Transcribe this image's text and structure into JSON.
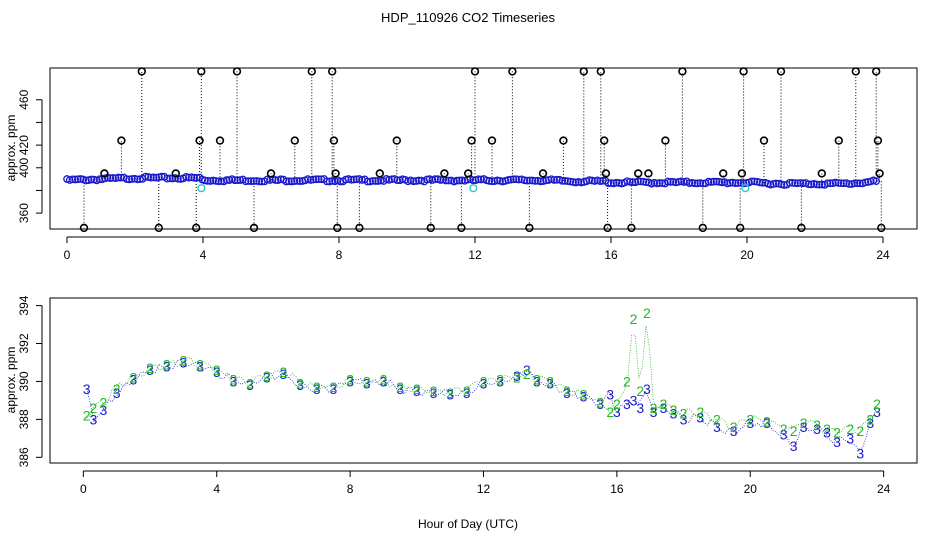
{
  "chart_data": [
    {
      "type": "scatter",
      "panel": "top",
      "title": "HDP_110926  CO2 Timeseries",
      "xlabel": "",
      "ylabel": "approx. ppm",
      "xlim": [
        -0.5,
        25
      ],
      "ylim": [
        346,
        488
      ],
      "xticks": [
        0,
        4,
        8,
        12,
        16,
        20,
        24
      ],
      "yticks": [
        360,
        380,
        400,
        420,
        440,
        460
      ],
      "ytick_labels": [
        "360",
        "",
        "400",
        "420",
        "",
        "460"
      ],
      "xtick_labels": [
        "0",
        "4",
        "8",
        "12",
        "16",
        "20",
        "24"
      ],
      "colors": {
        "main": "#1a1acc",
        "outlier": "#000000",
        "cyan": "#22cccc"
      },
      "series": [
        {
          "name": "main",
          "x": [
            0.0,
            1.0,
            2.0,
            3.0,
            3.9,
            4.0,
            5.0,
            6.0,
            7.0,
            8.0,
            9.0,
            10.0,
            11.0,
            12.0,
            13.0,
            14.0,
            15.0,
            15.8,
            16.0,
            17.0,
            18.0,
            19.0,
            20.0,
            21.0,
            22.0,
            23.0,
            23.8
          ],
          "y": [
            389,
            390,
            391,
            391,
            391,
            389,
            389,
            389,
            389,
            389,
            389,
            389,
            389,
            389,
            389,
            389,
            388,
            388,
            387,
            387,
            387,
            387,
            387,
            386,
            386,
            386,
            388
          ]
        },
        {
          "name": "outliers",
          "x": [
            0.5,
            1.1,
            1.6,
            2.2,
            2.7,
            3.2,
            3.8,
            3.9,
            3.95,
            4.5,
            5.0,
            5.5,
            6.0,
            6.7,
            7.2,
            7.8,
            7.85,
            7.9,
            7.95,
            8.6,
            9.2,
            9.7,
            10.7,
            11.1,
            11.6,
            11.8,
            11.9,
            12.0,
            12.5,
            13.1,
            13.6,
            14.0,
            14.6,
            15.2,
            15.7,
            15.8,
            15.85,
            15.9,
            16.6,
            16.8,
            17.1,
            17.6,
            18.1,
            18.7,
            19.3,
            19.8,
            19.85,
            19.9,
            20.5,
            21.0,
            21.6,
            22.2,
            22.7,
            23.2,
            23.8,
            23.85,
            23.9,
            23.95
          ],
          "y": [
            347,
            395,
            424,
            485,
            347,
            395,
            347,
            424,
            485,
            424,
            485,
            347,
            395,
            424,
            485,
            485,
            424,
            395,
            347,
            347,
            395,
            424,
            347,
            395,
            347,
            395,
            424,
            485,
            424,
            485,
            347,
            395,
            424,
            485,
            485,
            424,
            395,
            347,
            347,
            395,
            395,
            424,
            485,
            347,
            395,
            347,
            395,
            485,
            424,
            485,
            347,
            395,
            424,
            485,
            485,
            424,
            395,
            347
          ]
        },
        {
          "name": "cyan",
          "x": [
            3.95,
            11.95,
            19.95
          ],
          "y": [
            382,
            382,
            382
          ]
        }
      ]
    },
    {
      "type": "line",
      "panel": "bottom",
      "title": "",
      "xlabel": "Hour of Day (UTC)",
      "ylabel": "approx. ppm",
      "xlim": [
        -1,
        25
      ],
      "ylim": [
        385.7,
        394.4
      ],
      "xticks": [
        0,
        4,
        8,
        12,
        16,
        20,
        24
      ],
      "yticks": [
        386,
        388,
        390,
        392,
        394
      ],
      "xtick_labels": [
        "0",
        "4",
        "8",
        "12",
        "16",
        "20",
        "24"
      ],
      "ytick_labels": [
        "386",
        "388",
        "390",
        "392",
        "394"
      ],
      "colors": {
        "series3": "#1a1acc",
        "series2": "#22bb22"
      },
      "series": [
        {
          "name": "3",
          "x": [
            0.1,
            0.3,
            0.6,
            1.0,
            1.5,
            2.0,
            2.5,
            3.0,
            3.5,
            4.0,
            4.5,
            5.0,
            5.5,
            6.0,
            6.5,
            7.0,
            7.5,
            8.0,
            8.5,
            9.0,
            9.5,
            10.0,
            10.5,
            11.0,
            11.5,
            12.0,
            12.5,
            13.0,
            13.3,
            13.6,
            14.0,
            14.5,
            15.0,
            15.5,
            15.8,
            16.0,
            16.3,
            16.5,
            16.7,
            16.9,
            17.1,
            17.4,
            17.7,
            18.0,
            18.5,
            19.0,
            19.5,
            20.0,
            20.5,
            21.0,
            21.3,
            21.6,
            22.0,
            22.3,
            22.6,
            23.0,
            23.3,
            23.6,
            23.8
          ],
          "y": [
            389.6,
            388.0,
            388.5,
            389.4,
            390.1,
            390.6,
            390.8,
            391.0,
            390.8,
            390.5,
            390.0,
            389.8,
            390.2,
            390.4,
            389.8,
            389.6,
            389.6,
            390.0,
            389.9,
            390.0,
            389.6,
            389.5,
            389.4,
            389.3,
            389.4,
            389.9,
            390.0,
            390.3,
            390.6,
            390.0,
            389.9,
            389.4,
            389.2,
            388.8,
            389.3,
            388.4,
            388.8,
            389.0,
            388.6,
            389.6,
            388.4,
            388.6,
            388.3,
            388.0,
            388.1,
            387.6,
            387.4,
            387.8,
            387.8,
            387.2,
            386.6,
            387.6,
            387.5,
            387.3,
            386.8,
            387.0,
            386.2,
            387.8,
            388.4
          ]
        },
        {
          "name": "2",
          "x": [
            0.1,
            0.3,
            0.6,
            1.0,
            1.5,
            2.0,
            2.5,
            3.0,
            3.5,
            4.0,
            4.5,
            5.0,
            5.5,
            6.0,
            6.5,
            7.0,
            7.5,
            8.0,
            8.5,
            9.0,
            9.5,
            10.0,
            10.5,
            11.0,
            11.5,
            12.0,
            12.5,
            13.0,
            13.3,
            13.6,
            14.0,
            14.5,
            15.0,
            15.5,
            15.8,
            16.0,
            16.3,
            16.5,
            16.7,
            16.9,
            17.1,
            17.4,
            17.7,
            18.0,
            18.5,
            19.0,
            19.5,
            20.0,
            20.5,
            21.0,
            21.3,
            21.6,
            22.0,
            22.3,
            22.6,
            23.0,
            23.3,
            23.6,
            23.8
          ],
          "y": [
            388.2,
            388.6,
            388.9,
            389.6,
            390.2,
            390.7,
            390.9,
            391.1,
            390.9,
            390.6,
            390.1,
            389.9,
            390.3,
            390.5,
            389.9,
            389.7,
            389.7,
            390.1,
            390.0,
            390.1,
            389.7,
            389.6,
            389.5,
            389.4,
            389.5,
            390.0,
            390.1,
            390.2,
            390.4,
            390.1,
            390.0,
            389.5,
            389.3,
            388.9,
            388.4,
            388.8,
            390.0,
            393.3,
            389.5,
            393.6,
            388.6,
            388.8,
            388.5,
            388.3,
            388.4,
            388.0,
            387.6,
            388.0,
            387.9,
            387.5,
            387.4,
            387.8,
            387.7,
            387.5,
            387.3,
            387.5,
            387.4,
            388.0,
            388.8
          ]
        }
      ]
    }
  ]
}
